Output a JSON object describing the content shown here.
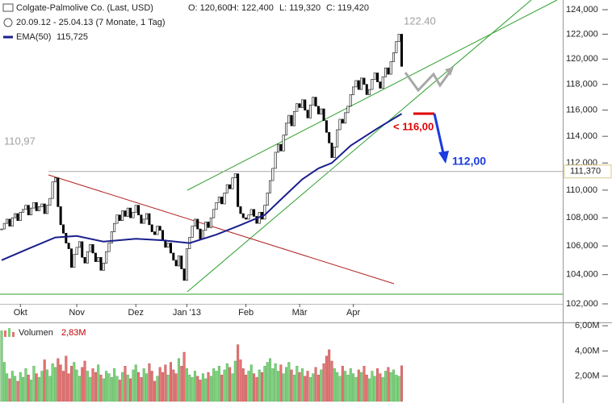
{
  "chart_data": [
    {
      "type": "stock",
      "title": "Colgate-Palmolive Co. (Last, USD)",
      "quote": [
        "O: 120,600",
        "H: 122,400",
        "L: 119,320",
        "C: 119,420"
      ],
      "period": "20.09.12 - 25.04.13 (7 Monate, 1 Tag)",
      "color": "#000000",
      "values": [
        107.2,
        107.6,
        107.9,
        107.4,
        108.0,
        108.3,
        107.8,
        108.4,
        108.6,
        108.9,
        108.2,
        108.7,
        109.1,
        108.5,
        108.8,
        109.0,
        108.3,
        108.9,
        109.4,
        110.6,
        110.9,
        108.8,
        107.5,
        106.9,
        106.2,
        105.8,
        104.5,
        105.4,
        105.9,
        106.3,
        105.2,
        104.8,
        105.6,
        106.1,
        105.5,
        104.9,
        105.2,
        104.3,
        104.8,
        105.6,
        106.2,
        107.0,
        107.6,
        108.2,
        107.8,
        108.5,
        108.1,
        108.7,
        108.0,
        108.4,
        108.9,
        108.2,
        107.6,
        107.9,
        108.3,
        107.5,
        107.0,
        106.8,
        107.4,
        107.1,
        106.4,
        105.9,
        106.2,
        105.5,
        105.0,
        104.6,
        105.3,
        104.4,
        103.6,
        105.8,
        106.6,
        107.4,
        107.9,
        107.2,
        106.5,
        107.1,
        107.7,
        107.3,
        108.0,
        108.6,
        109.1,
        109.5,
        109.0,
        109.8,
        110.4,
        110.1,
        110.9,
        111.2,
        108.8,
        108.3,
        108.0,
        107.9,
        108.2,
        108.6,
        108.1,
        107.6,
        108.4,
        107.9,
        108.9,
        109.8,
        110.7,
        111.6,
        112.8,
        113.4,
        112.9,
        114.1,
        115.0,
        115.6,
        114.8,
        115.9,
        116.5,
        116.2,
        116.8,
        116.0,
        115.4,
        116.4,
        117.0,
        116.3,
        115.7,
        116.1,
        115.2,
        114.3,
        113.5,
        112.4,
        113.2,
        114.5,
        115.3,
        115.0,
        115.8,
        116.3,
        117.2,
        117.8,
        118.3,
        117.6,
        118.5,
        118.0,
        117.2,
        117.6,
        118.4,
        118.9,
        118.2,
        117.7,
        118.6,
        119.3,
        118.8,
        119.8,
        120.5,
        121.4,
        122.0,
        119.42
      ],
      "ema": {
        "name": "EMA(50)",
        "value_label": "115,725",
        "color": "#1a1f8c",
        "x": [
          0,
          10,
          20,
          28,
          38,
          50,
          60,
          70,
          80,
          88,
          98,
          105,
          112,
          118,
          123,
          130,
          140,
          149
        ],
        "values": [
          105.0,
          105.8,
          106.6,
          106.7,
          106.3,
          106.5,
          106.4,
          106.2,
          106.8,
          107.4,
          108.2,
          109.5,
          110.8,
          111.6,
          112.0,
          113.3,
          114.6,
          115.725
        ]
      },
      "level": {
        "value": 111.37,
        "label": "111,370"
      },
      "annotations": [
        "122.40",
        "110,97",
        "< 116,00",
        "112,00"
      ],
      "log_scale": true,
      "xlim": [
        -0.6,
        209
      ],
      "xticks": [
        {
          "value": 7,
          "label": "Okt"
        },
        {
          "value": 28,
          "label": "Nov"
        },
        {
          "value": 50,
          "label": "Dez"
        },
        {
          "value": 69,
          "label": "Jan '13"
        },
        {
          "value": 91,
          "label": "Feb"
        },
        {
          "value": 111,
          "label": "Mär"
        },
        {
          "value": 131,
          "label": "Apr"
        }
      ],
      "ylim": [
        102,
        124.8
      ],
      "yticks": [
        {
          "value": 102,
          "label": "102,000"
        },
        {
          "value": 104,
          "label": "104,000"
        },
        {
          "value": 106,
          "label": "106,000"
        },
        {
          "value": 108,
          "label": "108,000"
        },
        {
          "value": 110,
          "label": "110,000"
        },
        {
          "value": 112,
          "label": "112,000"
        },
        {
          "value": 114,
          "label": "114,000"
        },
        {
          "value": 116,
          "label": "116,000"
        },
        {
          "value": 118,
          "label": "118,000"
        },
        {
          "value": 120,
          "label": "120,000"
        },
        {
          "value": 122,
          "label": "122,000"
        },
        {
          "value": 124,
          "label": "124,000"
        }
      ]
    },
    {
      "type": "bar",
      "name": "Volumen",
      "last_label": "2,83M",
      "up_color": "#7ed37e",
      "down_color": "#e27474",
      "values": [
        5.6,
        3.1,
        2.2,
        1.8,
        2.4,
        2.0,
        1.6,
        2.3,
        1.9,
        2.6,
        2.1,
        1.7,
        2.8,
        2.2,
        1.9,
        2.4,
        3.3,
        2.5,
        2.0,
        3.0,
        2.7,
        3.4,
        2.9,
        2.4,
        3.6,
        2.2,
        2.8,
        3.1,
        2.5,
        2.0,
        2.7,
        3.2,
        2.4,
        1.9,
        2.6,
        2.3,
        2.9,
        2.1,
        1.8,
        2.4,
        2.2,
        1.9,
        2.6,
        2.0,
        1.7,
        2.3,
        2.8,
        2.1,
        1.8,
        2.5,
        2.9,
        2.3,
        1.9,
        2.6,
        2.2,
        3.0,
        2.4,
        1.6,
        2.0,
        2.7,
        2.3,
        2.9,
        2.1,
        3.1,
        2.5,
        2.2,
        3.4,
        2.8,
        3.9,
        2.6,
        2.1,
        1.9,
        2.4,
        2.0,
        1.7,
        2.2,
        1.8,
        2.3,
        2.0,
        2.6,
        2.4,
        2.8,
        2.1,
        2.5,
        3.0,
        2.7,
        2.2,
        3.2,
        4.5,
        3.3,
        2.6,
        2.1,
        2.4,
        2.9,
        2.2,
        1.9,
        2.5,
        2.3,
        2.8,
        3.1,
        3.4,
        2.6,
        3.0,
        2.4,
        2.9,
        2.2,
        2.7,
        3.1,
        2.5,
        2.1,
        2.8,
        2.3,
        2.6,
        2.0,
        2.4,
        1.9,
        2.2,
        2.7,
        2.1,
        2.5,
        3.0,
        3.6,
        4.1,
        3.2,
        2.6,
        2.3,
        2.0,
        2.8,
        2.4,
        2.1,
        2.6,
        2.2,
        1.9,
        2.5,
        2.3,
        2.8,
        2.1,
        1.8,
        2.4,
        2.0,
        2.6,
        2.2,
        1.9,
        2.4,
        2.7,
        2.3,
        2.5,
        2.1,
        2.0,
        2.83
      ],
      "xlim": [
        -0.6,
        209
      ],
      "ylim": [
        0,
        6.2
      ],
      "yticks": [
        {
          "value": 2,
          "label": "2,00M"
        },
        {
          "value": 4,
          "label": "4,00M"
        },
        {
          "value": 6,
          "label": "6,00M"
        }
      ]
    }
  ]
}
